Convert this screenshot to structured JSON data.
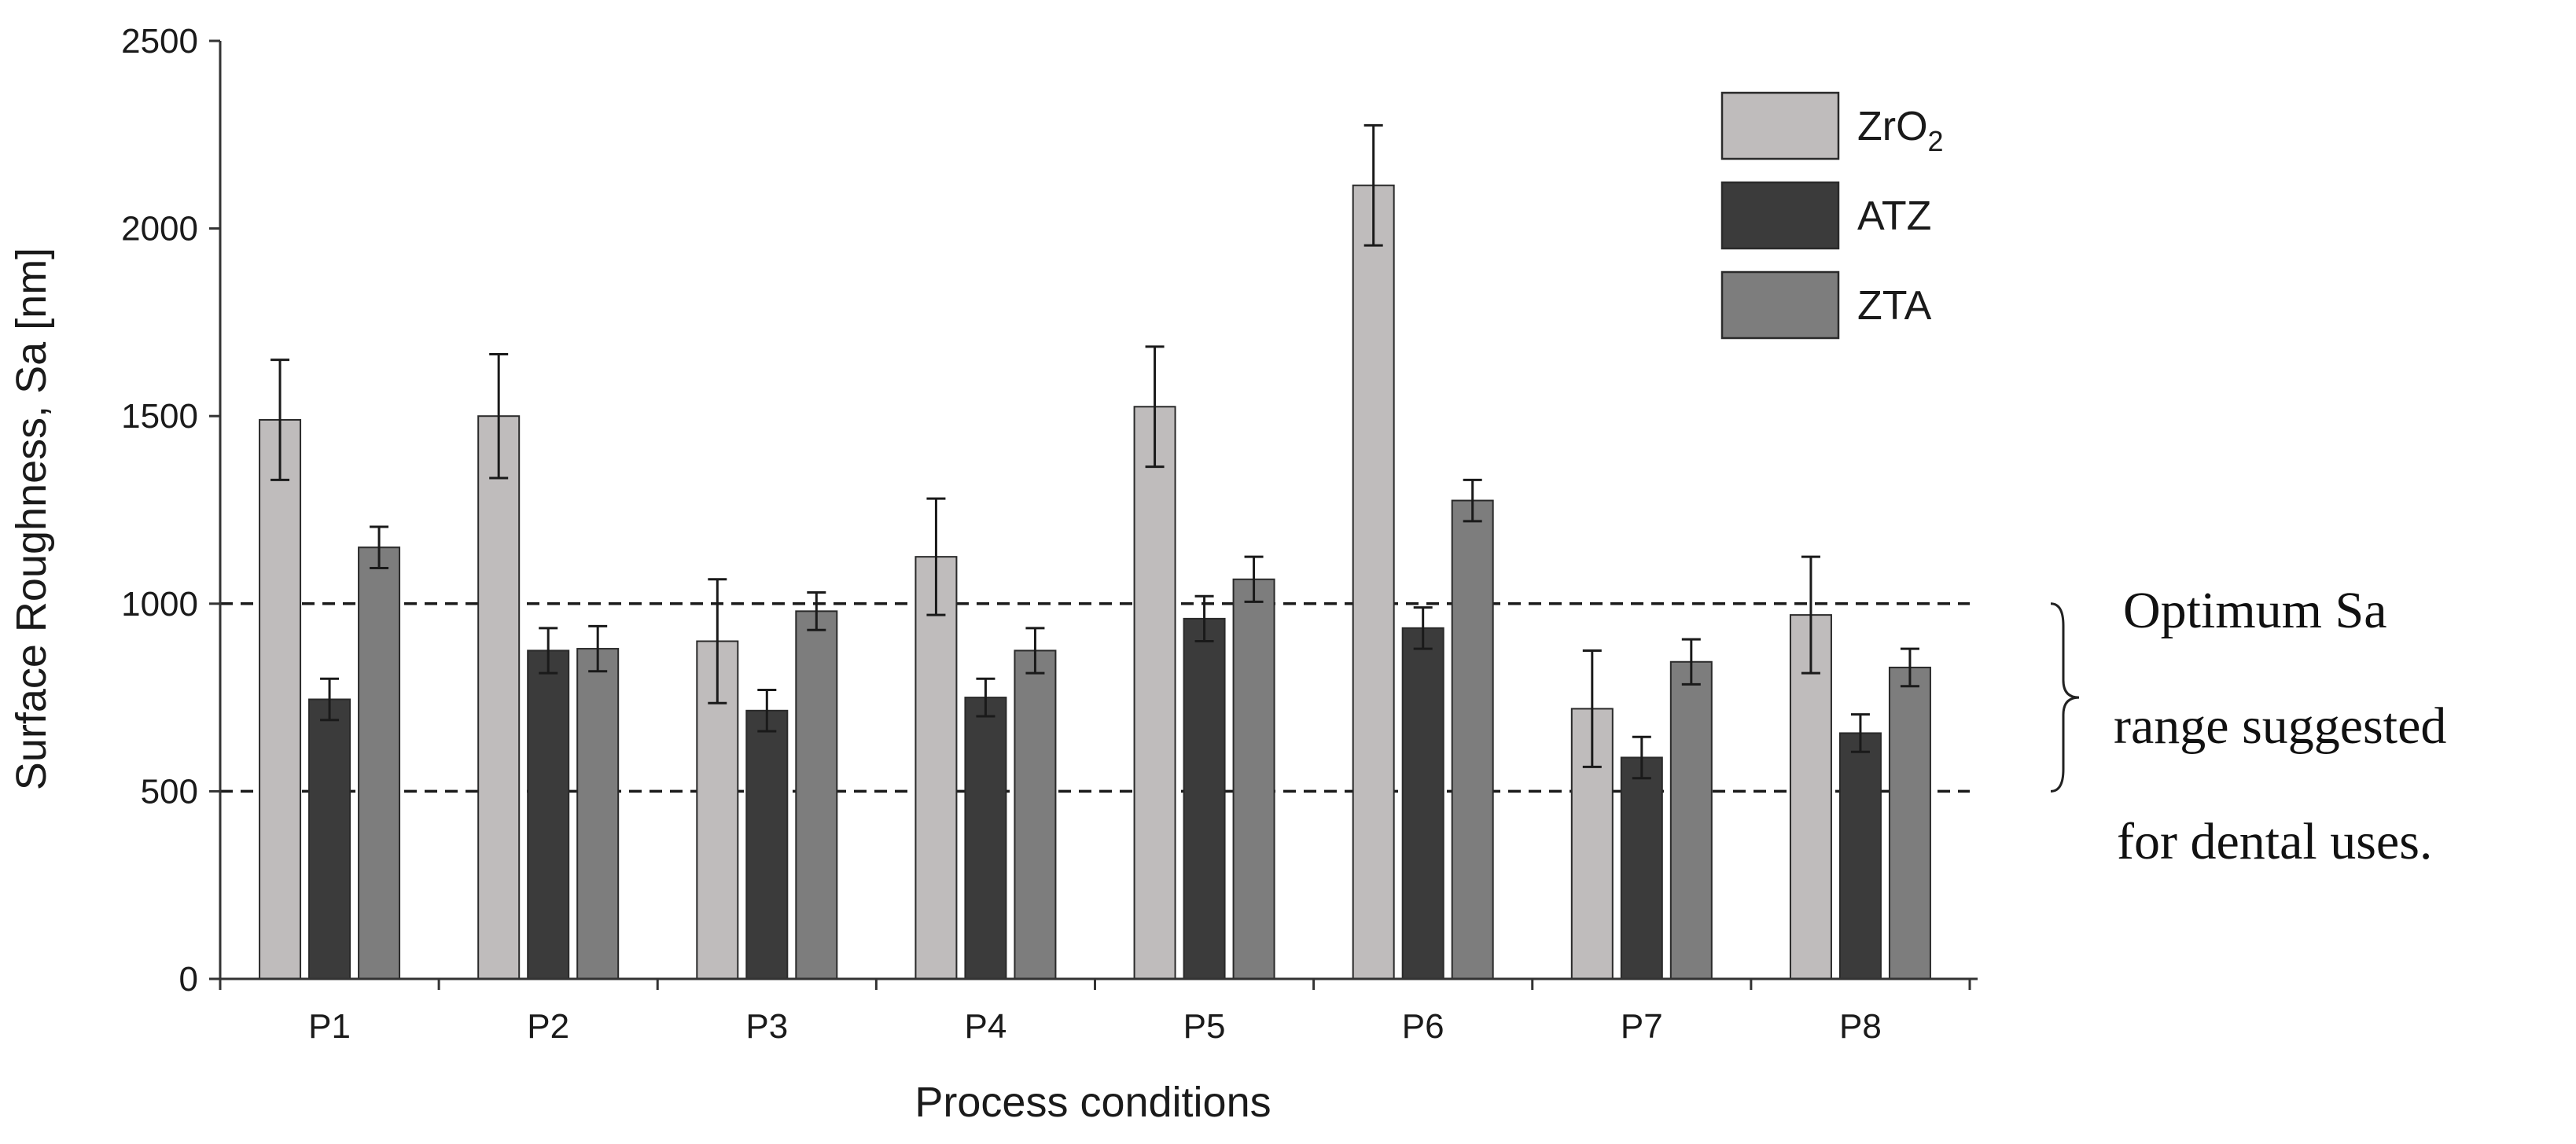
{
  "chart_data": {
    "type": "bar",
    "title": "",
    "xlabel": "Process conditions",
    "ylabel": "Surface Roughness, Sa [nm]",
    "ylim": [
      0,
      2500
    ],
    "yticks": [
      0,
      500,
      1000,
      1500,
      2000,
      2500
    ],
    "grid": false,
    "legend_position": "top-right",
    "categories": [
      "P1",
      "P2",
      "P3",
      "P4",
      "P5",
      "P6",
      "P7",
      "P8"
    ],
    "series": [
      {
        "name": "ZrO2",
        "legend_base": "ZrO",
        "legend_sub": "2",
        "color": "#bfbcbc",
        "values": [
          1490,
          1500,
          900,
          1125,
          1525,
          2115,
          720,
          970
        ],
        "errors": [
          160,
          165,
          165,
          155,
          160,
          160,
          155,
          155
        ]
      },
      {
        "name": "ATZ",
        "color": "#3b3b3b",
        "values": [
          745,
          875,
          715,
          750,
          960,
          935,
          590,
          655
        ],
        "errors": [
          55,
          60,
          55,
          50,
          60,
          55,
          55,
          50
        ]
      },
      {
        "name": "ZTA",
        "color": "#7d7d7d",
        "values": [
          1150,
          880,
          980,
          875,
          1065,
          1275,
          845,
          830
        ],
        "errors": [
          55,
          60,
          50,
          60,
          60,
          55,
          60,
          50
        ]
      }
    ],
    "reference_lines": [
      {
        "value": 1000,
        "style": "dashed"
      },
      {
        "value": 500,
        "style": "dashed"
      }
    ],
    "annotation": {
      "lines": [
        "Optimum Sa",
        "range suggested",
        "for dental uses."
      ],
      "range": [
        500,
        1000
      ]
    }
  }
}
